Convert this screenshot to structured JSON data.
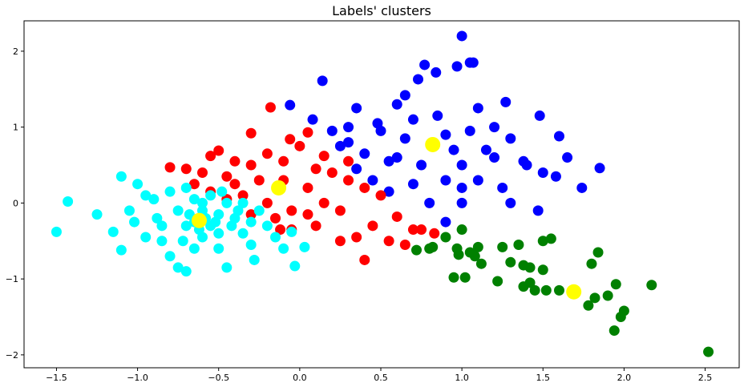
{
  "chart_data": {
    "type": "scatter",
    "title": "Labels' clusters",
    "xlim": [
      -1.7,
      2.71
    ],
    "ylim": [
      -2.17,
      2.4
    ],
    "xticks": [
      {
        "value": -1.5,
        "label": "−1.5"
      },
      {
        "value": -1,
        "label": "−1.0"
      },
      {
        "value": -0.5,
        "label": "−0.5"
      },
      {
        "value": 0,
        "label": "0.0"
      },
      0.5,
      {
        "value": 1,
        "label": "1.0"
      },
      1.5,
      {
        "value": 2,
        "label": "2.0"
      },
      2.5
    ],
    "yticks": [
      {
        "value": -2,
        "label": "−2"
      },
      {
        "value": -1,
        "label": "−1"
      },
      0,
      1,
      2
    ],
    "series": [
      {
        "color": "#0000ff",
        "x": [
          1.0,
          1.07,
          0.77,
          0.84,
          0.73,
          0.97,
          0.14,
          -0.06,
          0.08,
          0.35,
          0.6,
          0.65,
          1.1,
          1.27,
          1.48,
          1.6,
          1.65,
          1.85,
          1.74,
          1.47,
          0.9,
          1.3,
          1.58,
          1.5,
          1.2,
          1.0,
          0.9,
          0.7,
          0.55,
          0.45,
          0.3,
          0.2,
          0.5,
          0.6,
          0.7,
          0.85,
          1.05,
          1.15,
          1.3,
          1.4,
          0.95,
          0.75,
          0.65,
          0.4,
          0.35,
          0.25,
          1.0,
          1.1,
          1.25,
          1.38,
          1.0,
          0.8,
          0.55,
          0.48,
          0.9,
          1.2,
          0.3,
          1.05
        ],
        "y": [
          2.2,
          1.85,
          1.82,
          1.72,
          1.63,
          1.8,
          1.61,
          1.29,
          1.1,
          1.25,
          1.3,
          1.42,
          1.25,
          1.33,
          1.15,
          0.88,
          0.6,
          0.46,
          0.2,
          -0.1,
          -0.25,
          0.0,
          0.35,
          0.4,
          0.6,
          0.5,
          0.3,
          0.25,
          0.15,
          0.3,
          0.8,
          0.95,
          0.95,
          0.6,
          1.1,
          1.15,
          0.95,
          0.7,
          0.85,
          0.5,
          0.7,
          0.5,
          0.85,
          0.65,
          0.45,
          0.75,
          0.2,
          0.3,
          0.2,
          0.55,
          0.0,
          0.0,
          0.55,
          1.05,
          0.9,
          1.0,
          1.0,
          1.85
        ]
      },
      {
        "color": "#ff0000",
        "x": [
          -0.18,
          -0.06,
          0.05,
          -0.3,
          -0.5,
          -0.55,
          -0.7,
          -0.8,
          -0.6,
          -0.45,
          -0.3,
          -0.2,
          -0.1,
          0.0,
          0.15,
          0.2,
          0.3,
          0.4,
          0.5,
          0.6,
          0.45,
          0.35,
          0.25,
          0.4,
          0.55,
          0.65,
          0.75,
          0.83,
          0.7,
          0.1,
          0.05,
          -0.05,
          -0.15,
          -0.2,
          -0.35,
          -0.4,
          -0.25,
          -0.1,
          0.05,
          -0.3,
          -0.12,
          0.15,
          0.25,
          -0.45,
          -0.55,
          -0.65,
          -0.05,
          0.1,
          0.3,
          -0.4
        ],
        "y": [
          1.26,
          0.84,
          0.93,
          0.92,
          0.69,
          0.62,
          0.45,
          0.47,
          0.4,
          0.35,
          0.5,
          0.65,
          0.55,
          0.75,
          0.62,
          0.4,
          0.3,
          0.2,
          0.1,
          -0.18,
          -0.3,
          -0.45,
          -0.5,
          -0.75,
          -0.5,
          -0.55,
          -0.35,
          -0.4,
          -0.35,
          -0.3,
          -0.15,
          -0.1,
          -0.2,
          0.0,
          0.1,
          0.25,
          0.3,
          0.3,
          0.2,
          -0.15,
          -0.35,
          0.0,
          -0.1,
          0.05,
          0.15,
          0.25,
          -0.35,
          0.45,
          0.55,
          0.55
        ]
      },
      {
        "color": "#00ffff",
        "x": [
          -1.5,
          -1.43,
          -1.25,
          -1.15,
          -1.1,
          -1.1,
          -1.05,
          -1.0,
          -0.95,
          -0.9,
          -0.85,
          -0.8,
          -0.75,
          -0.7,
          -0.65,
          -0.6,
          -0.55,
          -0.5,
          -0.45,
          -0.4,
          -0.35,
          -0.3,
          -0.28,
          -0.2,
          -0.15,
          -0.1,
          -0.05,
          -0.03,
          0.03,
          -0.45,
          -0.5,
          -0.7,
          -0.75,
          -0.8,
          -0.7,
          -0.65,
          -0.6,
          -0.55,
          -0.5,
          -0.65,
          -0.58,
          -0.62,
          -0.68,
          -0.52,
          -0.42,
          -0.38,
          -0.3,
          -0.25,
          -0.88,
          -0.95,
          -1.02,
          -0.72,
          -0.6,
          -0.48,
          -0.85,
          -0.35
        ],
        "y": [
          -0.38,
          0.02,
          -0.15,
          -0.38,
          0.35,
          -0.62,
          -0.1,
          0.25,
          -0.45,
          0.05,
          -0.3,
          -0.7,
          -0.85,
          -0.9,
          -0.6,
          -0.45,
          -0.3,
          -0.15,
          0.0,
          -0.2,
          -0.4,
          -0.55,
          -0.75,
          -0.3,
          -0.45,
          -0.6,
          -0.38,
          -0.83,
          -0.58,
          -0.85,
          -0.6,
          -0.3,
          -0.1,
          0.15,
          0.2,
          0.05,
          -0.1,
          0.1,
          -0.4,
          -0.25,
          -0.2,
          -0.35,
          -0.15,
          -0.25,
          -0.3,
          -0.1,
          -0.25,
          -0.1,
          -0.2,
          0.1,
          -0.25,
          -0.5,
          0.0,
          0.15,
          -0.5,
          0.0
        ]
      },
      {
        "color": "#008000",
        "x": [
          0.72,
          0.8,
          0.82,
          0.9,
          0.97,
          1.0,
          0.98,
          1.02,
          1.05,
          1.08,
          1.12,
          1.1,
          1.22,
          1.25,
          1.3,
          1.35,
          1.38,
          1.42,
          1.42,
          1.45,
          1.5,
          1.55,
          1.5,
          1.52,
          1.6,
          1.78,
          1.82,
          1.8,
          1.84,
          1.9,
          1.95,
          1.94,
          1.98,
          2.0,
          2.17,
          2.52,
          1.38,
          0.95
        ],
        "y": [
          -0.62,
          -0.6,
          -0.58,
          -0.45,
          -0.6,
          -0.35,
          -0.68,
          -0.98,
          -0.65,
          -0.7,
          -0.8,
          -0.58,
          -1.03,
          -0.58,
          -0.78,
          -0.55,
          -0.82,
          -0.85,
          -1.05,
          -1.15,
          -0.5,
          -0.47,
          -0.88,
          -1.15,
          -1.15,
          -1.35,
          -1.25,
          -0.8,
          -0.65,
          -1.22,
          -1.07,
          -1.68,
          -1.5,
          -1.42,
          -1.08,
          -1.96,
          -1.1,
          -0.98
        ]
      }
    ],
    "centroids": {
      "color": "#ffff00",
      "x": [
        0.82,
        -0.13,
        -0.62,
        1.69
      ],
      "y": [
        0.77,
        0.2,
        -0.23,
        -1.17
      ]
    }
  }
}
